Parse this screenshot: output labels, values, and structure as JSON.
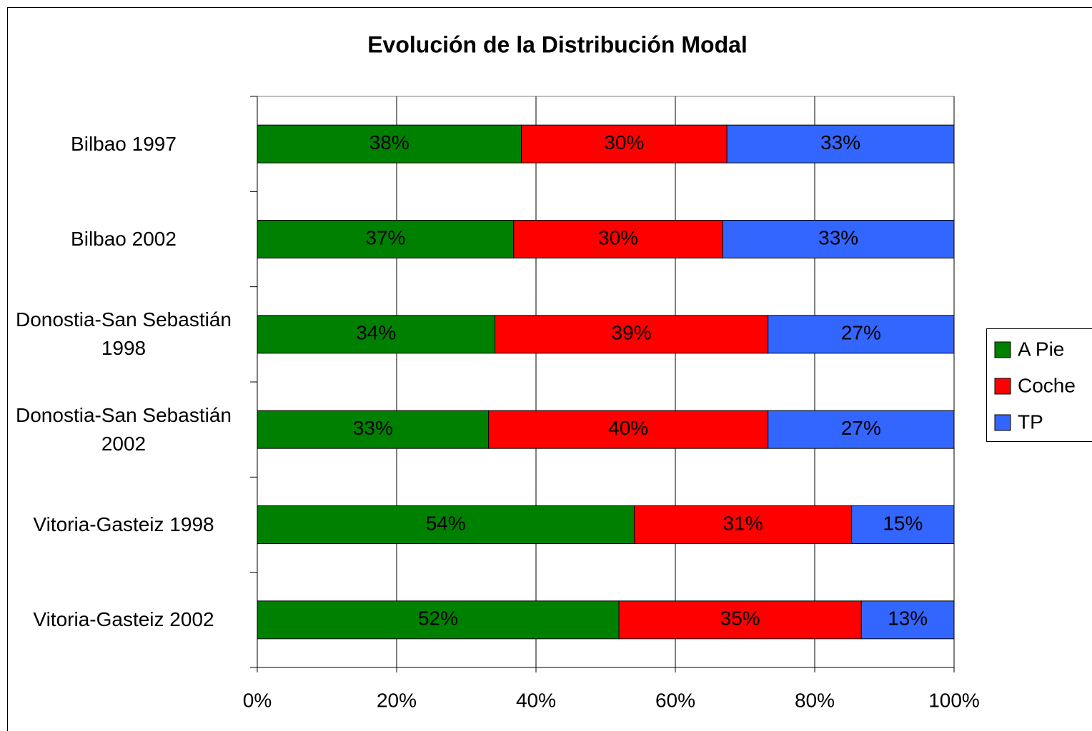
{
  "chart_data": {
    "type": "stacked-bar-horizontal",
    "title": "Evolución de la Distribución Modal",
    "categories": [
      "Bilbao 1997",
      "Bilbao 2002",
      "Donostia-San Sebastián 1998",
      "Donostia-San Sebastián 2002",
      "Vitoria-Gasteiz 1998",
      "Vitoria-Gasteiz 2002"
    ],
    "series": [
      {
        "name": "A Pie",
        "color": "#008000",
        "values": [
          37.9,
          36.8,
          34.1,
          33.2,
          54.1,
          51.9
        ],
        "value_labels": [
          "38%",
          "37%",
          "34%",
          "33%",
          "54%",
          "52%"
        ]
      },
      {
        "name": "Coche",
        "color": "#ff0000",
        "values": [
          29.5,
          30.0,
          39.2,
          40.1,
          31.2,
          34.8
        ],
        "value_labels": [
          "30%",
          "30%",
          "39%",
          "40%",
          "31%",
          "35%"
        ]
      },
      {
        "name": "TP",
        "color": "#3366ff",
        "values": [
          32.6,
          33.2,
          26.7,
          26.7,
          14.7,
          13.3
        ],
        "value_labels": [
          "33%",
          "33%",
          "27%",
          "27%",
          "15%",
          "13%"
        ]
      }
    ],
    "xlim": [
      0,
      100
    ],
    "xticks": [
      {
        "value": 0,
        "label": "0%"
      },
      {
        "value": 20,
        "label": "20%"
      },
      {
        "value": 40,
        "label": "40%"
      },
      {
        "value": 60,
        "label": "60%"
      },
      {
        "value": 80,
        "label": "80%"
      },
      {
        "value": 100,
        "label": "100%"
      }
    ],
    "grid": true,
    "legend": "right"
  }
}
